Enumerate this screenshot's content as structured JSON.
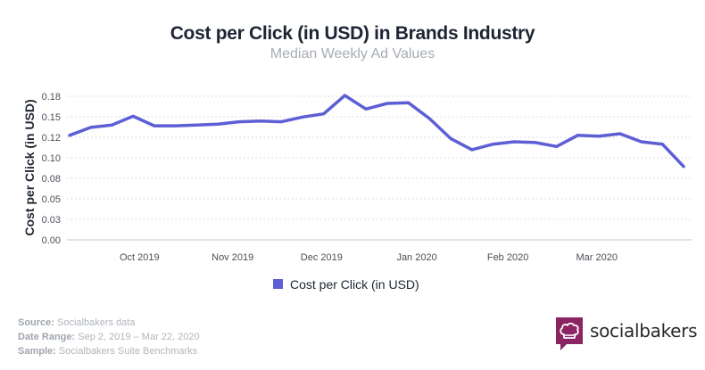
{
  "chart_data": {
    "type": "line",
    "title": "Cost per Click (in USD) in Brands Industry",
    "subtitle": "Median Weekly Ad Values",
    "ylabel": "Cost per Click (in USD)",
    "xlabel": "",
    "ylim": [
      0,
      0.18
    ],
    "y_ticks": [
      0.0,
      0.03,
      0.05,
      0.08,
      0.1,
      0.12,
      0.15,
      0.18
    ],
    "y_tick_labels": [
      "0.00",
      "0.03",
      "0.05",
      "0.08",
      "0.10",
      "0.12",
      "0.15",
      "0.18"
    ],
    "x_tick_labels": [
      {
        "label": "Oct 2019",
        "week_index": 3.3
      },
      {
        "label": "Nov 2019",
        "week_index": 7.7
      },
      {
        "label": "Dec 2019",
        "week_index": 11.9
      },
      {
        "label": "Jan 2020",
        "week_index": 16.4
      },
      {
        "label": "Feb 2020",
        "week_index": 20.7
      },
      {
        "label": "Mar 2020",
        "week_index": 24.9
      }
    ],
    "grid": true,
    "legend_position": "bottom-center",
    "series": [
      {
        "name": "Cost per Click (in USD)",
        "color": "#5d5fd4",
        "values": [
          0.131,
          0.141,
          0.144,
          0.155,
          0.143,
          0.143,
          0.144,
          0.145,
          0.148,
          0.149,
          0.148,
          0.154,
          0.158,
          0.181,
          0.164,
          0.171,
          0.172,
          0.152,
          0.127,
          0.113,
          0.12,
          0.123,
          0.122,
          0.117,
          0.131,
          0.13,
          0.133,
          0.123,
          0.12,
          0.092
        ]
      }
    ]
  },
  "footer": {
    "source_label": "Source:",
    "source_value": " Socialbakers data",
    "date_label": "Date Range:",
    "date_value": " Sep 2, 2019 – Mar 22, 2020",
    "sample_label": "Sample:",
    "sample_value": " Socialbakers Suite Benchmarks"
  },
  "logo": {
    "text": "socialbakers",
    "icon": "chef-hat-icon",
    "color": "#8a2463"
  },
  "colors": {
    "line": "#5d5fd4",
    "grid": "#cfd2d6",
    "axis_text": "#4a4f57"
  }
}
